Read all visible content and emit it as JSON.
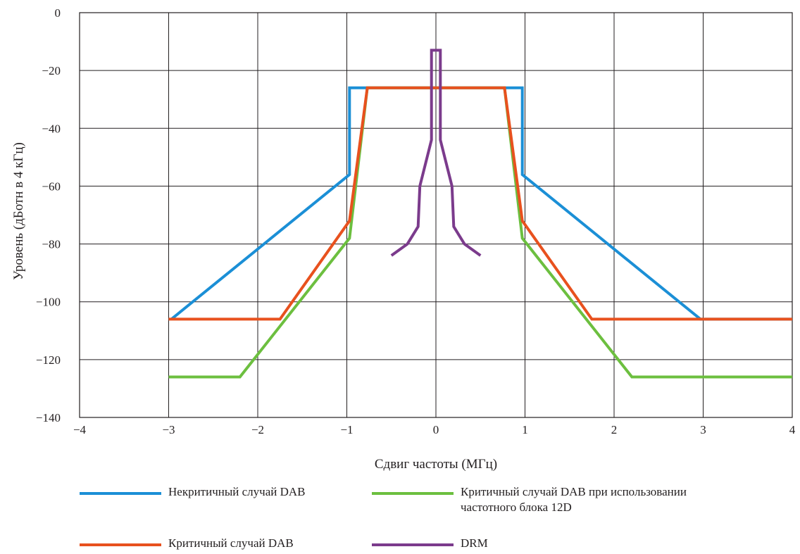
{
  "chart_data": {
    "type": "line",
    "title": "",
    "xlabel": "Сдвиг частоты (МГц)",
    "ylabel": "Уровень (дБотн в 4 кГц)",
    "xlim": [
      -4,
      4
    ],
    "ylim": [
      -140,
      0
    ],
    "xticks": [
      -4,
      -3,
      -2,
      -1,
      0,
      1,
      2,
      3,
      4
    ],
    "yticks": [
      0,
      -20,
      -40,
      -60,
      -80,
      -100,
      -120,
      -140
    ],
    "xtick_labels": [
      "−4",
      "−3",
      "−2",
      "−1",
      "0",
      "1",
      "2",
      "3",
      "4"
    ],
    "ytick_labels": [
      "0",
      "−20",
      "−40",
      "−60",
      "−80",
      "−100",
      "−120",
      "−140"
    ],
    "grid": true,
    "legend_position": "bottom",
    "series": [
      {
        "name": "Некритичный случай DAB",
        "color": "#1b8fd6",
        "x": [
          -2.97,
          -0.97,
          -0.97,
          0.97,
          0.97,
          2.97,
          4.0
        ],
        "y": [
          -106,
          -56,
          -26,
          -26,
          -56,
          -106,
          -106
        ]
      },
      {
        "name": "Критичный случай DAB при использовании\nчастотного блока 12D",
        "color": "#6cbf3f",
        "x": [
          -3.0,
          -2.2,
          -0.97,
          -0.77,
          0.77,
          0.97,
          2.2,
          4.0
        ],
        "y": [
          -126,
          -126,
          -78,
          -26,
          -26,
          -78,
          -126,
          -126
        ]
      },
      {
        "name": "Критичный случай DAB",
        "color": "#e8511e",
        "x": [
          -3.0,
          -1.75,
          -0.97,
          -0.77,
          0.77,
          0.97,
          1.75,
          4.0
        ],
        "y": [
          -106,
          -106,
          -72,
          -26,
          -26,
          -72,
          -106,
          -106
        ]
      },
      {
        "name": "DRM",
        "color": "#7b3b8c",
        "x": [
          -0.5,
          -0.32,
          -0.2,
          -0.18,
          -0.05,
          -0.05,
          0.05,
          0.05,
          0.18,
          0.2,
          0.32,
          0.5
        ],
        "y": [
          -84,
          -80,
          -74,
          -60,
          -44,
          -13,
          -13,
          -44,
          -60,
          -74,
          -80,
          -84
        ]
      }
    ]
  }
}
